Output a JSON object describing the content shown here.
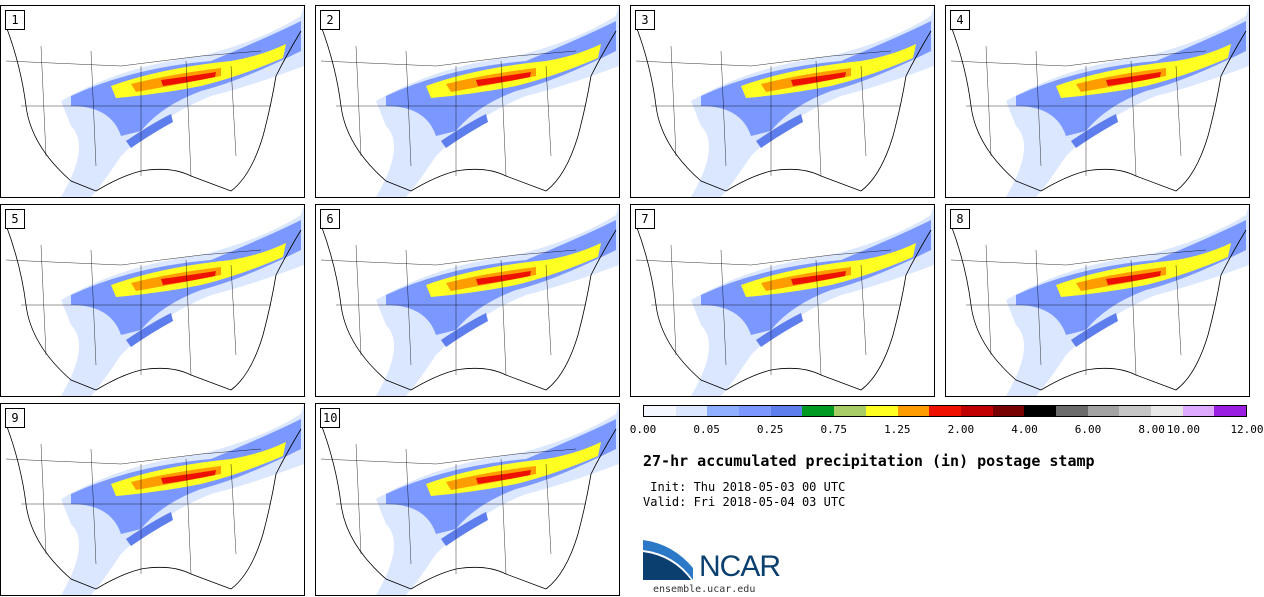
{
  "panels": [
    {
      "label": "1"
    },
    {
      "label": "2"
    },
    {
      "label": "3"
    },
    {
      "label": "4"
    },
    {
      "label": "5"
    },
    {
      "label": "6"
    },
    {
      "label": "7"
    },
    {
      "label": "8"
    },
    {
      "label": "9"
    },
    {
      "label": "10"
    }
  ],
  "legend": {
    "colors": [
      "#f4f7ff",
      "#dbe6ff",
      "#8fb0ff",
      "#7a98ff",
      "#5f7eee",
      "#009a22",
      "#a8cc66",
      "#ffff22",
      "#ff9d00",
      "#ee1100",
      "#c00000",
      "#770000",
      "#000000",
      "#6b6b6b",
      "#a3a3a3",
      "#c6c6c6",
      "#e8e8e8",
      "#ddaaff",
      "#9b1fe0"
    ],
    "ticks": [
      "0.00",
      "0.05",
      "0.25",
      "0.75",
      "1.25",
      "2.00",
      "4.00",
      "6.00",
      "8.00",
      "10.00",
      "12.00"
    ]
  },
  "title": "27-hr accumulated precipitation (in) postage stamp",
  "init": " Init: Thu 2018-05-03 00 UTC",
  "valid": "Valid: Fri 2018-05-04 03 UTC",
  "logo": {
    "word": "NCAR",
    "url": "ensemble.ucar.edu",
    "color": "#0a3f6f"
  }
}
